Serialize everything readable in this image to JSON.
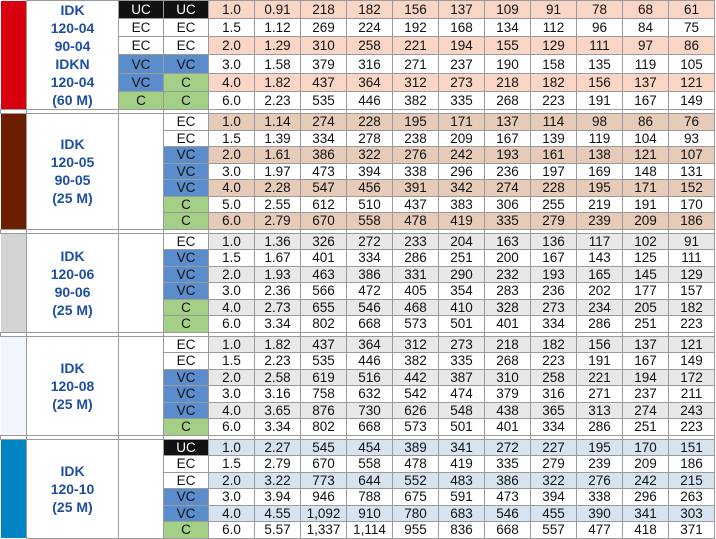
{
  "grade_colors": {
    "UC": "#111111",
    "EC": "#ffffff",
    "VC": "#5b8ccc",
    "C": "#a3cf86"
  },
  "sections": [
    {
      "bar_color": "#d7000f",
      "shade_color": "#f9d5c6",
      "name_lines": [
        "IDK",
        "120-04",
        "90-04",
        "IDKN",
        "120-04",
        "(60 M)"
      ],
      "rows": [
        {
          "g1": "UC",
          "g2": "UC",
          "values": [
            "1.0",
            "0.91",
            "218",
            "182",
            "156",
            "137",
            "109",
            "91",
            "78",
            "68",
            "61"
          ]
        },
        {
          "g1": "EC",
          "g2": "EC",
          "values": [
            "1.5",
            "1.12",
            "269",
            "224",
            "192",
            "168",
            "134",
            "112",
            "96",
            "84",
            "75"
          ]
        },
        {
          "g1": "EC",
          "g2": "EC",
          "values": [
            "2.0",
            "1.29",
            "310",
            "258",
            "221",
            "194",
            "155",
            "129",
            "111",
            "97",
            "86"
          ]
        },
        {
          "g1": "VC",
          "g2": "VC",
          "values": [
            "3.0",
            "1.58",
            "379",
            "316",
            "271",
            "237",
            "190",
            "158",
            "135",
            "119",
            "105"
          ]
        },
        {
          "g1": "VC",
          "g2": "C",
          "values": [
            "4.0",
            "1.82",
            "437",
            "364",
            "312",
            "273",
            "218",
            "182",
            "156",
            "137",
            "121"
          ]
        },
        {
          "g1": "C",
          "g2": "C",
          "values": [
            "6.0",
            "2.23",
            "535",
            "446",
            "382",
            "335",
            "268",
            "223",
            "191",
            "167",
            "149"
          ]
        }
      ]
    },
    {
      "bar_color": "#6b1e00",
      "shade_color": "#e6cbb9",
      "name_lines": [
        "IDK",
        "120-05",
        "90-05",
        "(25 M)"
      ],
      "rows": [
        {
          "g2": "EC",
          "values": [
            "1.0",
            "1.14",
            "274",
            "228",
            "195",
            "171",
            "137",
            "114",
            "98",
            "86",
            "76"
          ]
        },
        {
          "g2": "EC",
          "values": [
            "1.5",
            "1.39",
            "334",
            "278",
            "238",
            "209",
            "167",
            "139",
            "119",
            "104",
            "93"
          ]
        },
        {
          "g2": "VC",
          "values": [
            "2.0",
            "1.61",
            "386",
            "322",
            "276",
            "242",
            "193",
            "161",
            "138",
            "121",
            "107"
          ]
        },
        {
          "g2": "VC",
          "values": [
            "3.0",
            "1.97",
            "473",
            "394",
            "338",
            "296",
            "236",
            "197",
            "169",
            "148",
            "131"
          ]
        },
        {
          "g2": "VC",
          "values": [
            "4.0",
            "2.28",
            "547",
            "456",
            "391",
            "342",
            "274",
            "228",
            "195",
            "171",
            "152"
          ]
        },
        {
          "g2": "C",
          "values": [
            "5.0",
            "2.55",
            "612",
            "510",
            "437",
            "383",
            "306",
            "255",
            "219",
            "191",
            "170"
          ]
        },
        {
          "g2": "C",
          "values": [
            "6.0",
            "2.79",
            "670",
            "558",
            "478",
            "419",
            "335",
            "279",
            "239",
            "209",
            "186"
          ]
        }
      ]
    },
    {
      "bar_color": "#d4d4d4",
      "shade_color": "#e8e8e8",
      "name_lines": [
        "IDK",
        "120-06",
        "90-06",
        "(25 M)"
      ],
      "rows": [
        {
          "g2": "EC",
          "values": [
            "1.0",
            "1.36",
            "326",
            "272",
            "233",
            "204",
            "163",
            "136",
            "117",
            "102",
            "91"
          ]
        },
        {
          "g2": "VC",
          "values": [
            "1.5",
            "1.67",
            "401",
            "334",
            "286",
            "251",
            "200",
            "167",
            "143",
            "125",
            "111"
          ]
        },
        {
          "g2": "VC",
          "values": [
            "2.0",
            "1.93",
            "463",
            "386",
            "331",
            "290",
            "232",
            "193",
            "165",
            "145",
            "129"
          ]
        },
        {
          "g2": "VC",
          "values": [
            "3.0",
            "2.36",
            "566",
            "472",
            "405",
            "354",
            "283",
            "236",
            "202",
            "177",
            "157"
          ]
        },
        {
          "g2": "C",
          "values": [
            "4.0",
            "2.73",
            "655",
            "546",
            "468",
            "410",
            "328",
            "273",
            "234",
            "205",
            "182"
          ]
        },
        {
          "g2": "C",
          "values": [
            "6.0",
            "3.34",
            "802",
            "668",
            "573",
            "501",
            "401",
            "334",
            "286",
            "251",
            "223"
          ]
        }
      ]
    },
    {
      "bar_color": "#f1f6fc",
      "shade_color": "#e8e8e8",
      "name_lines": [
        "IDK",
        "120-08",
        "(25 M)"
      ],
      "rows": [
        {
          "g2": "EC",
          "values": [
            "1.0",
            "1.82",
            "437",
            "364",
            "312",
            "273",
            "218",
            "182",
            "156",
            "137",
            "121"
          ]
        },
        {
          "g2": "EC",
          "values": [
            "1.5",
            "2.23",
            "535",
            "446",
            "382",
            "335",
            "268",
            "223",
            "191",
            "167",
            "149"
          ]
        },
        {
          "g2": "VC",
          "values": [
            "2.0",
            "2.58",
            "619",
            "516",
            "442",
            "387",
            "310",
            "258",
            "221",
            "194",
            "172"
          ]
        },
        {
          "g2": "VC",
          "values": [
            "3.0",
            "3.16",
            "758",
            "632",
            "542",
            "474",
            "379",
            "316",
            "271",
            "237",
            "211"
          ]
        },
        {
          "g2": "VC",
          "values": [
            "4.0",
            "3.65",
            "876",
            "730",
            "626",
            "548",
            "438",
            "365",
            "313",
            "274",
            "243"
          ]
        },
        {
          "g2": "C",
          "values": [
            "6.0",
            "3.34",
            "802",
            "668",
            "573",
            "501",
            "401",
            "334",
            "286",
            "251",
            "223"
          ]
        }
      ]
    },
    {
      "bar_color": "#0084c2",
      "shade_color": "#d6e3f0",
      "name_lines": [
        "IDK",
        "120-10",
        "(25 M)"
      ],
      "rows": [
        {
          "g2": "UC",
          "values": [
            "1.0",
            "2.27",
            "545",
            "454",
            "389",
            "341",
            "272",
            "227",
            "195",
            "170",
            "151"
          ]
        },
        {
          "g2": "EC",
          "values": [
            "1.5",
            "2.79",
            "670",
            "558",
            "478",
            "419",
            "335",
            "279",
            "239",
            "209",
            "186"
          ]
        },
        {
          "g2": "EC",
          "values": [
            "2.0",
            "3.22",
            "773",
            "644",
            "552",
            "483",
            "386",
            "322",
            "276",
            "242",
            "215"
          ]
        },
        {
          "g2": "VC",
          "values": [
            "3.0",
            "3.94",
            "946",
            "788",
            "675",
            "591",
            "473",
            "394",
            "338",
            "296",
            "263"
          ]
        },
        {
          "g2": "VC",
          "values": [
            "4.0",
            "4.55",
            "1,092",
            "910",
            "780",
            "683",
            "546",
            "455",
            "390",
            "341",
            "303"
          ]
        },
        {
          "g2": "C",
          "values": [
            "6.0",
            "5.57",
            "1,337",
            "1,114",
            "955",
            "836",
            "668",
            "557",
            "477",
            "418",
            "371"
          ]
        }
      ]
    }
  ]
}
